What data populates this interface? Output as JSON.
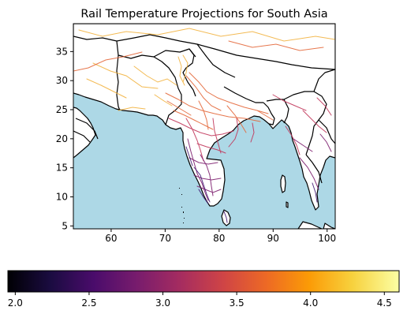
{
  "title": "Rail Temperature Projections for South Asia",
  "map": {
    "xlim": [
      53,
      101.5
    ],
    "ylim": [
      4.5,
      39.8
    ],
    "x_ticks": [
      60,
      70,
      80,
      90,
      100
    ],
    "y_ticks": [
      5,
      10,
      15,
      20,
      25,
      30,
      35
    ],
    "ocean_color": "#add8e6",
    "land_color": "#ffffff",
    "border_color": "#000000"
  },
  "colorbar": {
    "colormap": "inferno",
    "min": 1.95,
    "max": 4.6,
    "ticks": [
      "2.0",
      "2.5",
      "3.0",
      "3.5",
      "4.0",
      "4.5"
    ],
    "stops": [
      "#000004",
      "#1b0c41",
      "#4a0c6b",
      "#781c6d",
      "#a52c60",
      "#cf4446",
      "#ed6925",
      "#fb9b06",
      "#f7d13d",
      "#fcffa4"
    ]
  }
}
